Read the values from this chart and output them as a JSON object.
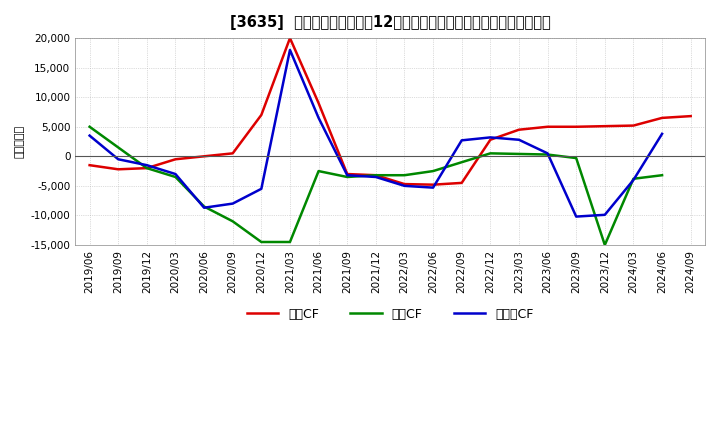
{
  "title": "[3635]  キャッシュフローの12か月移動合計の対前年同期増減額の推移",
  "ylabel": "（百万円）",
  "x_labels": [
    "2019/06",
    "2019/09",
    "2019/12",
    "2020/03",
    "2020/06",
    "2020/09",
    "2020/12",
    "2021/03",
    "2021/06",
    "2021/09",
    "2021/12",
    "2022/03",
    "2022/06",
    "2022/09",
    "2022/12",
    "2023/03",
    "2023/06",
    "2023/09",
    "2023/12",
    "2024/03",
    "2024/06",
    "2024/09"
  ],
  "operating_cf": [
    -1500,
    -2200,
    -2000,
    -500,
    0,
    500,
    7000,
    20000,
    9000,
    -3000,
    -3200,
    -4700,
    -4800,
    -4500,
    2800,
    4500,
    5000,
    5000,
    5100,
    5200,
    6500,
    6800
  ],
  "investing_cf": [
    5000,
    1500,
    -2000,
    -3500,
    -8500,
    -11000,
    -14500,
    -14500,
    -2500,
    -3500,
    -3200,
    -3200,
    -2500,
    -1000,
    500,
    400,
    300,
    -300,
    -15000,
    -3800,
    -3200,
    null
  ],
  "free_cf": [
    3500,
    -500,
    -1500,
    -3000,
    -8700,
    -8000,
    -5500,
    18000,
    6500,
    -3200,
    -3500,
    -5000,
    -5300,
    2700,
    3200,
    2800,
    500,
    -10200,
    -9900,
    -4000,
    3800,
    null
  ],
  "ylim": [
    -15000,
    20000
  ],
  "yticks": [
    -15000,
    -10000,
    -5000,
    0,
    5000,
    10000,
    15000,
    20000
  ],
  "operating_color": "#dd0000",
  "investing_color": "#008800",
  "free_color": "#0000cc",
  "bg_color": "#ffffff",
  "plot_bg_color": "#ffffff",
  "grid_color": "#aaaaaa",
  "legend_labels": [
    "営業CF",
    "投資CF",
    "フリーCF"
  ]
}
